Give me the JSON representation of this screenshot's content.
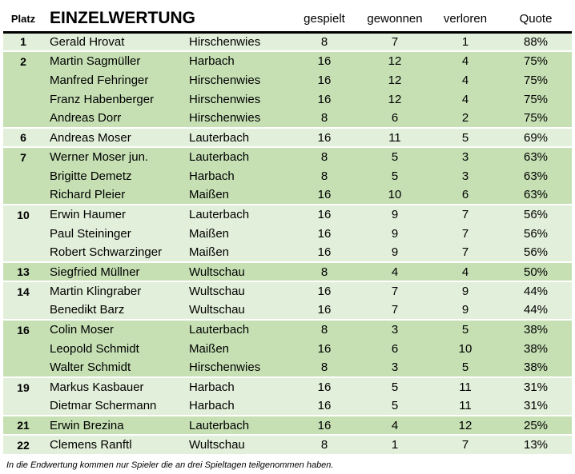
{
  "header": {
    "rank": "Platz",
    "title": "EINZELWERTUNG",
    "played": "gespielt",
    "won": "gewonnen",
    "lost": "verloren",
    "quote": "Quote"
  },
  "rows": [
    {
      "rank": "1",
      "name": "Gerald Hrovat",
      "club": "Hirschenwies",
      "played": "8",
      "won": "7",
      "lost": "1",
      "quote": "88%"
    },
    {
      "rank": "2",
      "name": "Martin Sagmüller",
      "club": "Harbach",
      "played": "16",
      "won": "12",
      "lost": "4",
      "quote": "75%"
    },
    {
      "rank": "",
      "name": "Manfred Fehringer",
      "club": "Hirschenwies",
      "played": "16",
      "won": "12",
      "lost": "4",
      "quote": "75%"
    },
    {
      "rank": "",
      "name": "Franz Habenberger",
      "club": "Hirschenwies",
      "played": "16",
      "won": "12",
      "lost": "4",
      "quote": "75%"
    },
    {
      "rank": "",
      "name": "Andreas Dorr",
      "club": "Hirschenwies",
      "played": "8",
      "won": "6",
      "lost": "2",
      "quote": "75%"
    },
    {
      "rank": "6",
      "name": "Andreas Moser",
      "club": "Lauterbach",
      "played": "16",
      "won": "11",
      "lost": "5",
      "quote": "69%"
    },
    {
      "rank": "7",
      "name": "Werner Moser jun.",
      "club": "Lauterbach",
      "played": "8",
      "won": "5",
      "lost": "3",
      "quote": "63%"
    },
    {
      "rank": "",
      "name": "Brigitte Demetz",
      "club": "Harbach",
      "played": "8",
      "won": "5",
      "lost": "3",
      "quote": "63%"
    },
    {
      "rank": "",
      "name": "Richard Pleier",
      "club": "Maißen",
      "played": "16",
      "won": "10",
      "lost": "6",
      "quote": "63%"
    },
    {
      "rank": "10",
      "name": "Erwin Haumer",
      "club": "Lauterbach",
      "played": "16",
      "won": "9",
      "lost": "7",
      "quote": "56%"
    },
    {
      "rank": "",
      "name": "Paul Steininger",
      "club": "Maißen",
      "played": "16",
      "won": "9",
      "lost": "7",
      "quote": "56%"
    },
    {
      "rank": "",
      "name": "Robert Schwarzinger",
      "club": "Maißen",
      "played": "16",
      "won": "9",
      "lost": "7",
      "quote": "56%"
    },
    {
      "rank": "13",
      "name": "Siegfried Müllner",
      "club": "Wultschau",
      "played": "8",
      "won": "4",
      "lost": "4",
      "quote": "50%"
    },
    {
      "rank": "14",
      "name": "Martin Klingraber",
      "club": "Wultschau",
      "played": "16",
      "won": "7",
      "lost": "9",
      "quote": "44%"
    },
    {
      "rank": "",
      "name": "Benedikt Barz",
      "club": "Wultschau",
      "played": "16",
      "won": "7",
      "lost": "9",
      "quote": "44%"
    },
    {
      "rank": "16",
      "name": "Colin Moser",
      "club": "Lauterbach",
      "played": "8",
      "won": "3",
      "lost": "5",
      "quote": "38%"
    },
    {
      "rank": "",
      "name": "Leopold Schmidt",
      "club": "Maißen",
      "played": "16",
      "won": "6",
      "lost": "10",
      "quote": "38%"
    },
    {
      "rank": "",
      "name": "Walter Schmidt",
      "club": "Hirschenwies",
      "played": "8",
      "won": "3",
      "lost": "5",
      "quote": "38%"
    },
    {
      "rank": "19",
      "name": "Markus Kasbauer",
      "club": "Harbach",
      "played": "16",
      "won": "5",
      "lost": "11",
      "quote": "31%"
    },
    {
      "rank": "",
      "name": "Dietmar Schermann",
      "club": "Harbach",
      "played": "16",
      "won": "5",
      "lost": "11",
      "quote": "31%"
    },
    {
      "rank": "21",
      "name": "Erwin Brezina",
      "club": "Lauterbach",
      "played": "16",
      "won": "4",
      "lost": "12",
      "quote": "25%"
    },
    {
      "rank": "22",
      "name": "Clemens Ranftl",
      "club": "Wultschau",
      "played": "8",
      "won": "1",
      "lost": "7",
      "quote": "13%"
    }
  ],
  "footnote": "In die Endwertung kommen nur Spieler die an drei Spieltagen teilgenommen haben.",
  "colors": {
    "row_light": "#e2efda",
    "row_dark": "#c6e0b4"
  }
}
